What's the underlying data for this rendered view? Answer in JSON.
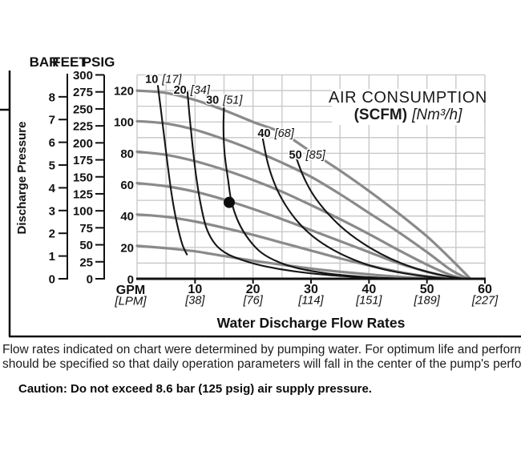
{
  "title_box": {
    "line1": "AIR CONSUMPTION",
    "scfm": "(SCFM)",
    "nm3h": "[Nm³/h]"
  },
  "axes": {
    "bar": {
      "header": "BAR",
      "labels": [
        8,
        7,
        6,
        5,
        4,
        3,
        2,
        1,
        0
      ]
    },
    "feet": {
      "header": "FEET",
      "labels": [
        300,
        275,
        250,
        225,
        200,
        175,
        150,
        125,
        100,
        75,
        50,
        25,
        0
      ]
    },
    "psig": {
      "header": "PSIG",
      "labels": [
        120,
        100,
        80,
        60,
        40,
        20,
        0
      ]
    },
    "gpm": {
      "header": "GPM",
      "header_sub": "[LPM]",
      "ticks": [
        {
          "gpm": "10",
          "lpm": "[38]"
        },
        {
          "gpm": "20",
          "lpm": "[76]"
        },
        {
          "gpm": "30",
          "lpm": "[114]"
        },
        {
          "gpm": "40",
          "lpm": "[151]"
        },
        {
          "gpm": "50",
          "lpm": "[189]"
        },
        {
          "gpm": "60",
          "lpm": "[227]"
        }
      ]
    }
  },
  "chart_data": {
    "type": "line",
    "title": "AIR CONSUMPTION (SCFM) [Nm³/h]",
    "xlabel": "Water Discharge Flow Rates",
    "ylabel": "Discharge Pressure",
    "x_units": [
      "GPM",
      "LPM"
    ],
    "y_units": [
      "BAR",
      "FEET",
      "PSIG"
    ],
    "xlim_gpm": [
      0,
      60
    ],
    "ylim_psig": [
      0,
      130
    ],
    "grid": {
      "x_step_gpm": 5,
      "y_step_psig": 10
    },
    "colors": {
      "performance_curve": "#8a8a8a",
      "air_curve": "#161616",
      "grid": "#c6c6c6",
      "axis": "#111111"
    },
    "performance_curves": [
      {
        "name": "120 psig air inlet",
        "points": [
          [
            0,
            120
          ],
          [
            5,
            118.5
          ],
          [
            10,
            114
          ],
          [
            15,
            107.5
          ],
          [
            20,
            100
          ],
          [
            25,
            93
          ],
          [
            30,
            81
          ],
          [
            35,
            69
          ],
          [
            40,
            56
          ],
          [
            45,
            42
          ],
          [
            50,
            27
          ],
          [
            54,
            13
          ],
          [
            57.5,
            0
          ]
        ]
      },
      {
        "name": "100 psig air inlet",
        "points": [
          [
            0,
            100.5
          ],
          [
            5,
            99
          ],
          [
            10,
            95
          ],
          [
            15,
            89
          ],
          [
            20,
            82
          ],
          [
            25,
            74
          ],
          [
            30,
            65
          ],
          [
            35,
            54
          ],
          [
            40,
            42
          ],
          [
            45,
            30
          ],
          [
            50,
            17
          ],
          [
            54,
            6
          ],
          [
            57,
            0
          ]
        ]
      },
      {
        "name": "80 psig air inlet",
        "points": [
          [
            0,
            81
          ],
          [
            5,
            79
          ],
          [
            10,
            75
          ],
          [
            15,
            69.5
          ],
          [
            20,
            63
          ],
          [
            25,
            55.5
          ],
          [
            30,
            47
          ],
          [
            35,
            38
          ],
          [
            40,
            28.5
          ],
          [
            45,
            18.5
          ],
          [
            50,
            9
          ],
          [
            54,
            2.5
          ],
          [
            56.3,
            0
          ]
        ]
      },
      {
        "name": "60 psig air inlet",
        "points": [
          [
            0,
            61
          ],
          [
            5,
            59
          ],
          [
            10,
            55.5
          ],
          [
            15,
            50.5
          ],
          [
            20,
            44.5
          ],
          [
            25,
            38
          ],
          [
            30,
            31
          ],
          [
            35,
            24
          ],
          [
            40,
            17
          ],
          [
            45,
            10
          ],
          [
            50,
            4.5
          ],
          [
            54,
            1
          ],
          [
            55.6,
            0
          ]
        ]
      },
      {
        "name": "40 psig air inlet",
        "points": [
          [
            0,
            41
          ],
          [
            5,
            39.5
          ],
          [
            10,
            36.5
          ],
          [
            15,
            32.5
          ],
          [
            20,
            28
          ],
          [
            25,
            23
          ],
          [
            30,
            18
          ],
          [
            35,
            13
          ],
          [
            40,
            8.5
          ],
          [
            45,
            4.5
          ],
          [
            50,
            1.5
          ],
          [
            54.5,
            0
          ]
        ]
      },
      {
        "name": "20 psig air inlet",
        "points": [
          [
            0,
            21
          ],
          [
            5,
            19.5
          ],
          [
            10,
            17.5
          ],
          [
            15,
            14.5
          ],
          [
            20,
            11.5
          ],
          [
            25,
            9
          ],
          [
            30,
            6.5
          ],
          [
            35,
            4.5
          ],
          [
            40,
            2.8
          ],
          [
            45,
            1.3
          ],
          [
            49,
            0.4
          ],
          [
            53,
            0
          ]
        ]
      }
    ],
    "air_consumption_curves": [
      {
        "scfm": "10",
        "nm3h": "[17]",
        "label_gpm": 1.4,
        "label_psig": 125,
        "points": [
          [
            3.6,
            123
          ],
          [
            4.1,
            108
          ],
          [
            4.7,
            90
          ],
          [
            5.3,
            72
          ],
          [
            6,
            53
          ],
          [
            6.9,
            35
          ],
          [
            7.8,
            22
          ],
          [
            8.6,
            15.5
          ]
        ]
      },
      {
        "scfm": "20",
        "nm3h": "[34]",
        "label_gpm": 6.3,
        "label_psig": 118,
        "points": [
          [
            8.7,
            119
          ],
          [
            9.1,
            102
          ],
          [
            9.6,
            84
          ],
          [
            10.2,
            65
          ],
          [
            11,
            47
          ],
          [
            12,
            32
          ],
          [
            13.5,
            22
          ],
          [
            15.5,
            16
          ],
          [
            18.5,
            11.5
          ],
          [
            22,
            8
          ],
          [
            27,
            4.8
          ],
          [
            33,
            2.4
          ],
          [
            39,
            0.9
          ],
          [
            43.5,
            0
          ]
        ]
      },
      {
        "scfm": "30",
        "nm3h": "[51]",
        "label_gpm": 11.9,
        "label_psig": 111.5,
        "points": [
          [
            15,
            111
          ],
          [
            14.9,
            96
          ],
          [
            15.1,
            80
          ],
          [
            15.7,
            63
          ],
          [
            16.3,
            49
          ],
          [
            17.5,
            36
          ],
          [
            19.3,
            25
          ],
          [
            21.5,
            16.5
          ],
          [
            24.5,
            10.5
          ],
          [
            28,
            6.5
          ],
          [
            33,
            3.3
          ],
          [
            39,
            1.3
          ],
          [
            46,
            0
          ]
        ]
      },
      {
        "scfm": "40",
        "nm3h": "[68]",
        "label_gpm": 20.8,
        "label_psig": 90.5,
        "points": [
          [
            21.7,
            89
          ],
          [
            22.6,
            73
          ],
          [
            23.9,
            59
          ],
          [
            25.6,
            47
          ],
          [
            27.8,
            36
          ],
          [
            30.5,
            26.5
          ],
          [
            33.8,
            18.5
          ],
          [
            37.5,
            12
          ],
          [
            41.5,
            7
          ],
          [
            46,
            3.5
          ],
          [
            50.5,
            1.2
          ],
          [
            54,
            0
          ]
        ]
      },
      {
        "scfm": "50",
        "nm3h": "[85]",
        "label_gpm": 26.2,
        "label_psig": 76.5,
        "points": [
          [
            27.2,
            80
          ],
          [
            28.6,
            66
          ],
          [
            30.4,
            53.5
          ],
          [
            32.7,
            42.5
          ],
          [
            35.4,
            32.5
          ],
          [
            38.6,
            23.5
          ],
          [
            42,
            16
          ],
          [
            45.5,
            10
          ],
          [
            49.5,
            5
          ],
          [
            53,
            2
          ],
          [
            56.3,
            0
          ]
        ]
      }
    ],
    "operating_point": {
      "gpm": 15.9,
      "psig": 48.7
    }
  },
  "footer": {
    "line1": "Flow rates indicated on chart were determined by pumping water. For optimum life and performance, pump",
    "line2": "should be specified so that daily operation parameters will fall in the center of the pump's performance curve",
    "caution": "Caution: Do not exceed 8.6 bar (125 psig) air supply pressure."
  }
}
